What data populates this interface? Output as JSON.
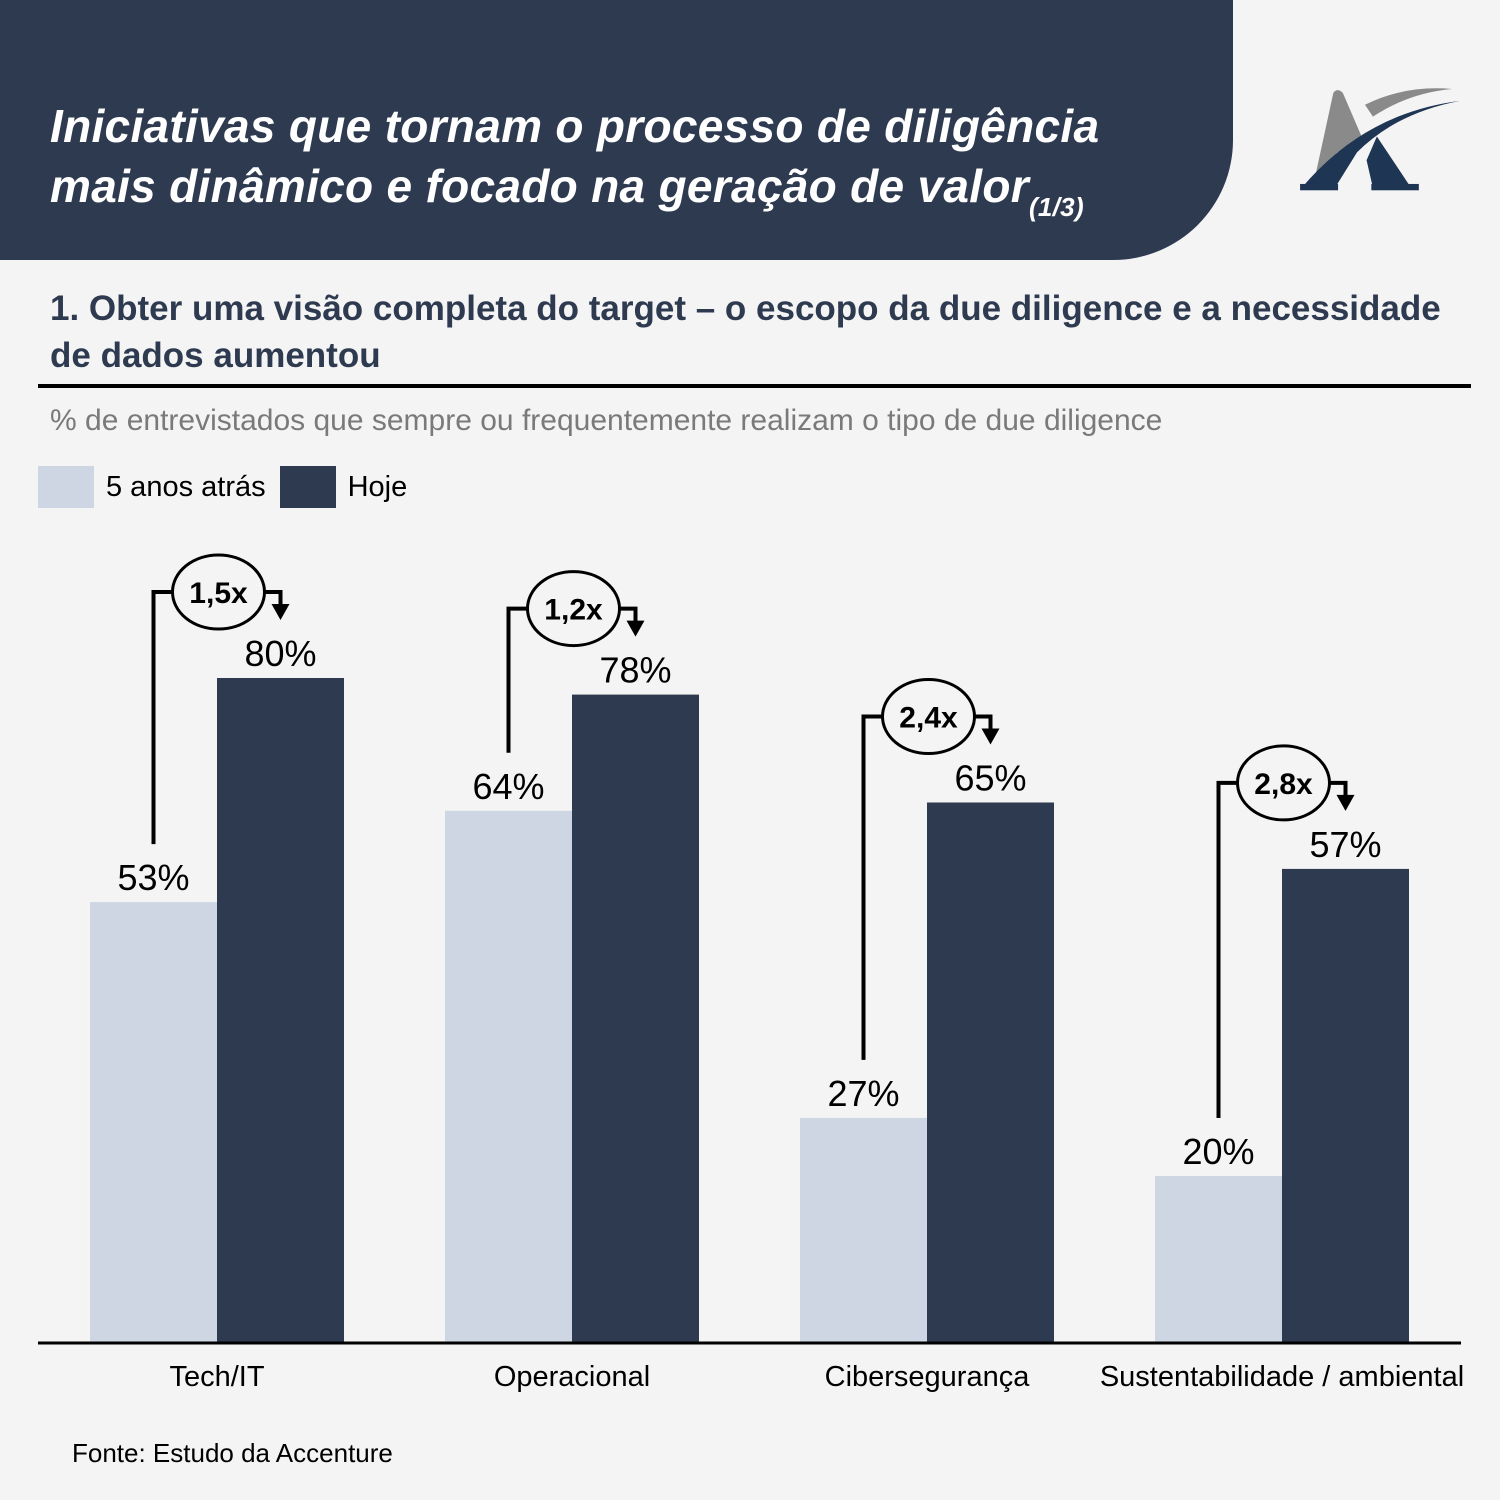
{
  "header": {
    "title_line1": "Iniciativas que tornam o processo de diligência",
    "title_line2": "mais dinâmico e focado na geração de valor",
    "page_indicator": "(1/3)",
    "logo": "stylized-letter-a-logo"
  },
  "section": {
    "title": "1. Obter uma visão completa do target – o escopo da due diligence e a necessidade de dados aumentou",
    "subtitle": "% de entrevistados que sempre ou frequentemente realizam o tipo de due diligence"
  },
  "legend": [
    {
      "label": "5 anos atrás",
      "color": "#cfd6e3"
    },
    {
      "label": "Hoje",
      "color": "#2e3a50"
    }
  ],
  "source": "Fonte: Estudo da Accenture",
  "chart_data": {
    "type": "bar",
    "title": "1. Obter uma visão completa do target – o escopo da due diligence e a necessidade de dados aumentou",
    "subtitle": "% de entrevistados que sempre ou frequentemente realizam o tipo de due diligence",
    "xlabel": "",
    "ylabel": "",
    "ylim": [
      0,
      100
    ],
    "grid": false,
    "legend_position": "top-left",
    "categories": [
      "Tech/IT",
      "Operacional",
      "Cibersegurança",
      "Sustentabilidade / ambiental"
    ],
    "series": [
      {
        "name": "5 anos atrás",
        "color": "#cfd6e3",
        "values": [
          53,
          64,
          27,
          20
        ],
        "labels": [
          "53%",
          "64%",
          "27%",
          "20%"
        ]
      },
      {
        "name": "Hoje",
        "color": "#2e3a50",
        "values": [
          80,
          78,
          65,
          57
        ],
        "labels": [
          "80%",
          "78%",
          "65%",
          "57%"
        ]
      }
    ],
    "annotations": [
      "1,5x",
      "1,2x",
      "2,4x",
      "2,8x"
    ]
  }
}
